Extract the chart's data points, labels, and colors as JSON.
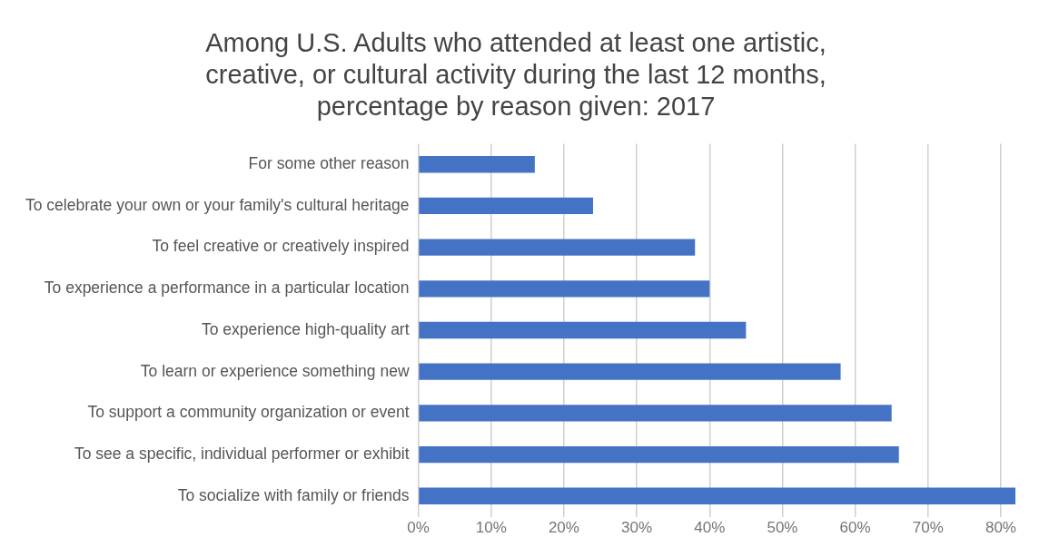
{
  "chart_data": {
    "type": "bar",
    "orientation": "horizontal",
    "title": "Among U.S. Adults who attended at least one artistic, creative, or cultural activity during the last 12 months, percentage by reason given: 2017",
    "categories": [
      "For some other reason",
      "To celebrate your own or your family's cultural heritage",
      "To feel creative or creatively inspired",
      "To experience a performance in a particular location",
      "To experience high-quality art",
      "To learn or experience something new",
      "To support a community organization or event",
      "To see a specific, individual performer or exhibit",
      "To socialize with family or friends"
    ],
    "values": [
      16,
      24,
      38,
      40,
      45,
      58,
      65,
      66,
      82
    ],
    "color": "#4472c4",
    "xticks": [
      {
        "value": 0,
        "label": "0%"
      },
      {
        "value": 10,
        "label": "10%"
      },
      {
        "value": 20,
        "label": "20%"
      },
      {
        "value": 30,
        "label": "30%"
      },
      {
        "value": 40,
        "label": "40%"
      },
      {
        "value": 50,
        "label": "50%"
      },
      {
        "value": 60,
        "label": "60%"
      },
      {
        "value": 70,
        "label": "70%"
      },
      {
        "value": 80,
        "label": "80%"
      }
    ],
    "xlim": [
      0,
      82
    ],
    "grid": "x",
    "legend": false
  }
}
